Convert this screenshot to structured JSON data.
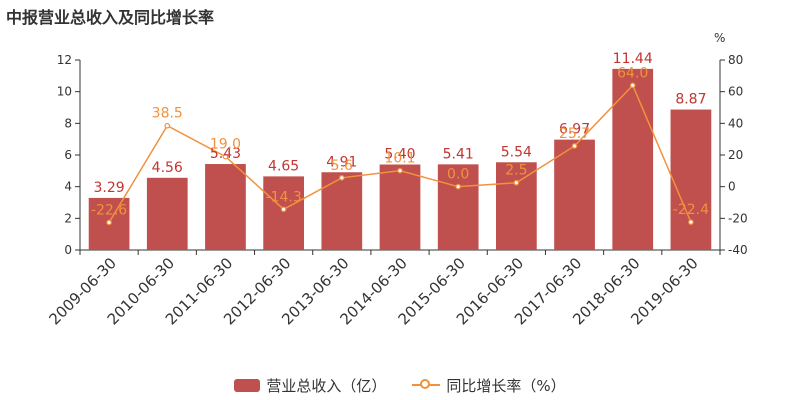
{
  "chart_data": {
    "type": "bar",
    "title": "中报营业总收入及同比增长率",
    "categories": [
      "2009-06-30",
      "2010-06-30",
      "2011-06-30",
      "2012-06-30",
      "2013-06-30",
      "2014-06-30",
      "2015-06-30",
      "2016-06-30",
      "2017-06-30",
      "2018-06-30",
      "2019-06-30"
    ],
    "series": [
      {
        "name": "营业总收入（亿）",
        "type": "bar",
        "axis": "left",
        "color": "#c0504d",
        "values": [
          3.29,
          4.56,
          5.43,
          4.65,
          4.91,
          5.4,
          5.41,
          5.54,
          6.97,
          11.44,
          8.87
        ],
        "labels": [
          "3.29",
          "4.56",
          "5.43",
          "4.65",
          "4.91",
          "5.40",
          "5.41",
          "5.54",
          "6.97",
          "11.44",
          "8.87"
        ]
      },
      {
        "name": "同比增长率（%）",
        "type": "line",
        "axis": "right",
        "color": "#f0923e",
        "values": [
          -22.6,
          38.5,
          19.0,
          -14.3,
          5.6,
          10.1,
          0.0,
          2.5,
          25.7,
          64.0,
          -22.4
        ],
        "labels": [
          "-22.6",
          "38.5",
          "19.0",
          "-14.3",
          "5.6",
          "10.1",
          "0.0",
          "2.5",
          "25.7",
          "64.0",
          "-22.4"
        ]
      }
    ],
    "y_left": {
      "min": 0,
      "max": 12,
      "ticks": [
        "0",
        "2",
        "4",
        "6",
        "8",
        "10",
        "12"
      ]
    },
    "y_right": {
      "min": -40,
      "max": 80,
      "unit": "%",
      "ticks": [
        "-40",
        "-20",
        "0",
        "20",
        "40",
        "60",
        "80"
      ]
    },
    "grid": false,
    "legend_position": "bottom"
  }
}
